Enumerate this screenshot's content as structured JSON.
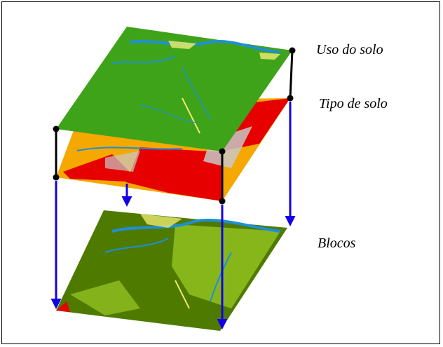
{
  "layers": [
    {
      "key": "uso",
      "label": "Uso do solo"
    },
    {
      "key": "tipo",
      "label": "Tipo de solo"
    },
    {
      "key": "blocos",
      "label": "Blocos"
    }
  ],
  "colors": {
    "uso_base": "#3fa31a",
    "tipo_base": "#f4a800",
    "tipo_accent": "#e60000",
    "blocos_base": "#4f7a00",
    "blocos_accent": "#8dbc1e",
    "water": "#1e8fd6",
    "arrow": "#1400e6",
    "connector": "#000000"
  }
}
